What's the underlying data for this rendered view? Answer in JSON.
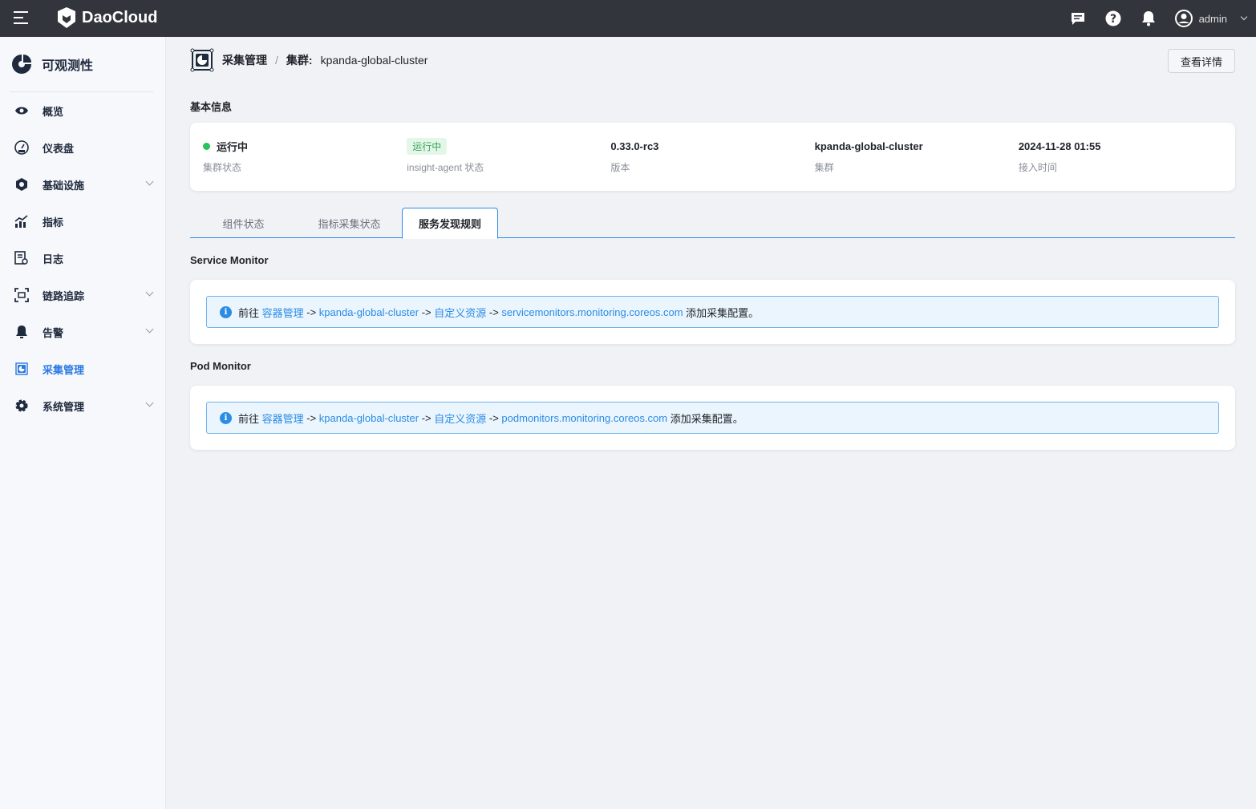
{
  "topbar": {
    "brand": "DaoCloud",
    "user": "admin",
    "icons": [
      "menu-icon",
      "message-icon",
      "help-icon",
      "bell-icon",
      "user-avatar-icon",
      "chevron-down-icon"
    ]
  },
  "sidebar": {
    "title": "可观测性",
    "items": [
      {
        "label": "概览",
        "icon": "eye-icon",
        "expandable": false
      },
      {
        "label": "仪表盘",
        "icon": "gauge-icon",
        "expandable": false
      },
      {
        "label": "基础设施",
        "icon": "hexagon-icon",
        "expandable": true
      },
      {
        "label": "指标",
        "icon": "chart-icon",
        "expandable": false
      },
      {
        "label": "日志",
        "icon": "log-search-icon",
        "expandable": false
      },
      {
        "label": "链路追踪",
        "icon": "trace-icon",
        "expandable": true
      },
      {
        "label": "告警",
        "icon": "bell-icon",
        "expandable": true
      },
      {
        "label": "采集管理",
        "icon": "collect-icon",
        "expandable": false,
        "active": true
      },
      {
        "label": "系统管理",
        "icon": "gear-icon",
        "expandable": true
      }
    ]
  },
  "breadcrumb": {
    "parent": "采集管理",
    "sep": "/",
    "label": "集群:",
    "cluster": "kpanda-global-cluster"
  },
  "detail_button": "查看详情",
  "basic": {
    "title": "基本信息",
    "fields": [
      {
        "value": "运行中",
        "label": "集群状态"
      },
      {
        "value": "运行中",
        "label": "insight-agent 状态"
      },
      {
        "value": "0.33.0-rc3",
        "label": "版本"
      },
      {
        "value": "kpanda-global-cluster",
        "label": "集群"
      },
      {
        "value": "2024-11-28 01:55",
        "label": "接入时间"
      }
    ]
  },
  "tabs": [
    {
      "label": "组件状态"
    },
    {
      "label": "指标采集状态"
    },
    {
      "label": "服务发现规则",
      "active": true
    }
  ],
  "sections": [
    {
      "title": "Service Monitor",
      "parts": [
        "前往 ",
        "容器管理",
        " -> ",
        "kpanda-global-cluster",
        " -> ",
        "自定义资源",
        " -> ",
        "servicemonitors.monitoring.coreos.com",
        " 添加采集配置。"
      ]
    },
    {
      "title": "Pod Monitor",
      "parts": [
        "前往 ",
        "容器管理",
        " -> ",
        "kpanda-global-cluster",
        " -> ",
        "自定义资源",
        " -> ",
        "podmonitors.monitoring.coreos.com",
        " 添加采集配置。"
      ]
    }
  ],
  "colors": {
    "topbar": "#32353b",
    "accent": "#2b8ce6",
    "success": "#2ac35e",
    "active_nav": "#2b79e2"
  }
}
